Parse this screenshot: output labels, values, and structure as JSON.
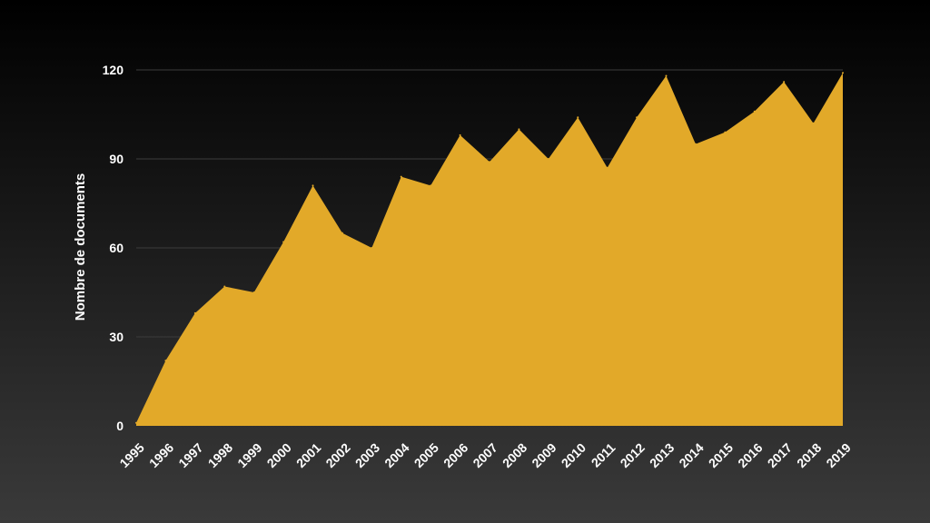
{
  "chart_data": {
    "type": "area",
    "title": "",
    "xlabel": "",
    "ylabel": "Nombre de documents",
    "x": [
      "1995",
      "1996",
      "1997",
      "1998",
      "1999",
      "2000",
      "2001",
      "2002",
      "2003",
      "2004",
      "2005",
      "2006",
      "2007",
      "2008",
      "2009",
      "2010",
      "2011",
      "2012",
      "2013",
      "2014",
      "2015",
      "2016",
      "2017",
      "2018",
      "2019"
    ],
    "series": [
      {
        "values": [
          1,
          22,
          38,
          47,
          45,
          62,
          81,
          65,
          60,
          84,
          81,
          98,
          89,
          100,
          90,
          104,
          87,
          104,
          118,
          95,
          99,
          106,
          116,
          102,
          119
        ],
        "color": "#e2a929"
      }
    ],
    "ylim": [
      0,
      120
    ],
    "yticks": [
      0,
      30,
      60,
      90,
      120
    ],
    "grid": true,
    "legend": "none"
  }
}
